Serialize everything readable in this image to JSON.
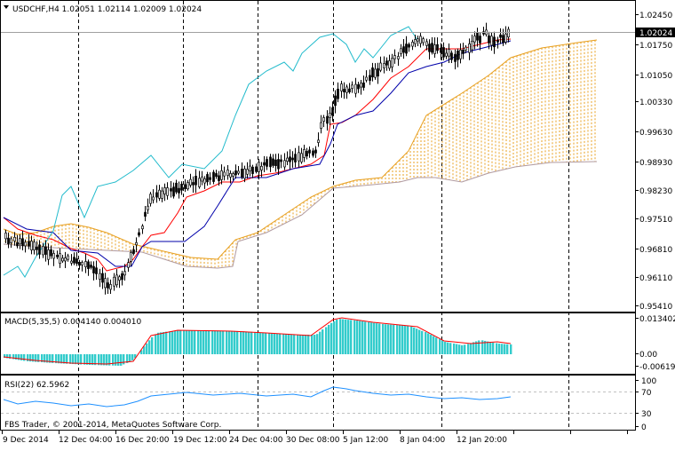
{
  "main_panel": {
    "title": "USDCHF,H4  1.02051 1.02114 1.02009 1.02024",
    "price_labels": [
      "1.02450",
      "1.01750",
      "1.01050",
      "1.00330",
      "0.99630",
      "0.98930",
      "0.98230",
      "0.97510",
      "0.96810",
      "0.96110",
      "0.95410"
    ],
    "current_price": "1.02024"
  },
  "macd_panel": {
    "title": "MACD(5,35,5) 0.004140 0.004010",
    "labels": [
      "0.013402",
      "0.00",
      "-0.006194"
    ]
  },
  "rsi_panel": {
    "title": "RSI(22) 62.5962",
    "labels": [
      "100",
      "70",
      "30",
      "0"
    ]
  },
  "footer": {
    "copyright": "FBS Trader, © 2001-2014, MetaQuotes Software Corp."
  },
  "time_axis": {
    "labels": [
      "9 Dec 2014",
      "12 Dec 04:00",
      "16 Dec 20:00",
      "19 Dec 12:00",
      "24 Dec 04:00",
      "30 Dec 08:00",
      "5 Jan 12:00",
      "8 Jan 04:00",
      "12 Jan 20:00"
    ]
  },
  "colors": {
    "candles": "#000000",
    "tenkan": "#ff0000",
    "kijun": "#0000aa",
    "chikou": "#22bbcc",
    "senkou_a": "#e8a020",
    "senkou_b": "#b09aa0",
    "macd_hist": "#33cccc",
    "macd_signal": "#ff0000",
    "rsi_line": "#1e90ff",
    "badge": "#000000"
  }
}
